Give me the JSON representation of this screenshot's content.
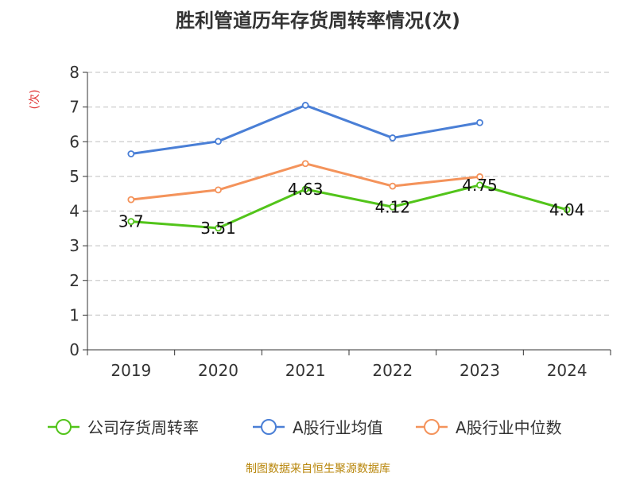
{
  "chart_data": {
    "type": "line",
    "title": "胜利管道历年存货周转率情况(次)",
    "ylabel": "(次)",
    "xlabel": "",
    "categories": [
      "2019",
      "2020",
      "2021",
      "2022",
      "2023",
      "2024"
    ],
    "ylim": [
      0,
      8
    ],
    "yticks": [
      0,
      1,
      2,
      3,
      4,
      5,
      6,
      7,
      8
    ],
    "grid": true,
    "legend_position": "bottom",
    "series": [
      {
        "name": "公司存货周转率",
        "color": "#52c41a",
        "values": [
          3.7,
          3.51,
          4.63,
          4.12,
          4.75,
          4.04
        ],
        "labels": [
          "3.7",
          "3.51",
          "4.63",
          "4.12",
          "4.75",
          "4.04"
        ]
      },
      {
        "name": "A股行业均值",
        "color": "#4a7fd6",
        "values": [
          5.65,
          6.01,
          7.05,
          6.11,
          6.55,
          null
        ]
      },
      {
        "name": "A股行业中位数",
        "color": "#f4935b",
        "values": [
          4.33,
          4.61,
          5.37,
          4.72,
          4.99,
          null
        ]
      }
    ],
    "source": "制图数据来自恒生聚源数据库"
  }
}
